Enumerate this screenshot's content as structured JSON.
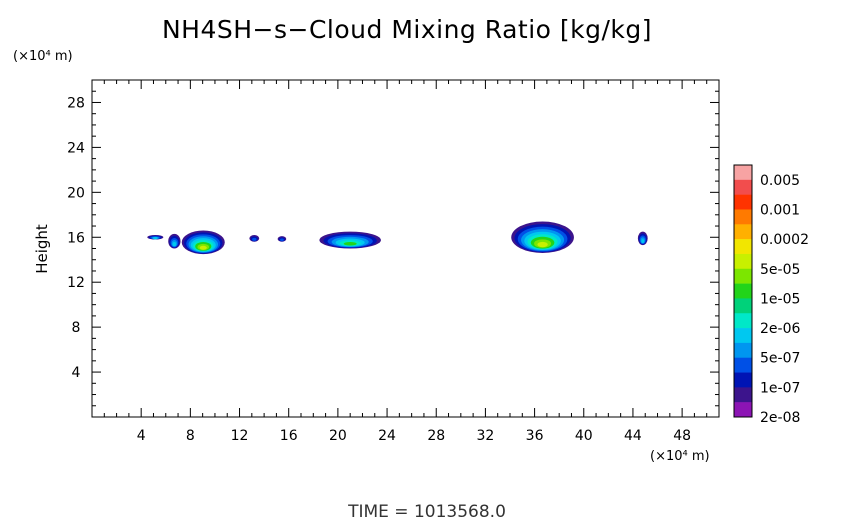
{
  "chart_data": {
    "type": "heatmap",
    "title": "NH4SH−s−Cloud Mixing Ratio [kg/kg]",
    "xlabel": "",
    "ylabel": "Height",
    "x_unit": "(×10⁴ m)",
    "y_unit": "(×10⁴ m)",
    "xlim": [
      0,
      51
    ],
    "ylim": [
      0,
      30
    ],
    "x_ticks": [
      4,
      8,
      12,
      16,
      20,
      24,
      28,
      32,
      36,
      40,
      44,
      48
    ],
    "y_ticks": [
      4,
      8,
      12,
      16,
      20,
      24,
      28
    ],
    "colorbar": {
      "labels": [
        "0.005",
        "0.001",
        "0.0002",
        "5e-05",
        "1e-05",
        "2e-06",
        "5e-07",
        "1e-07",
        "2e-08"
      ],
      "colors": [
        "#f7a3a3",
        "#f24d4d",
        "#ff3300",
        "#ff7a00",
        "#ffb000",
        "#f2e600",
        "#c8f000",
        "#7ce600",
        "#22d41a",
        "#00d27a",
        "#00e8c8",
        "#00c8f0",
        "#0096f0",
        "#0050e6",
        "#0014b4",
        "#3c148c",
        "#8c14b4"
      ]
    },
    "features": [
      {
        "x": [
          4.5,
          5.8
        ],
        "y": [
          15.8,
          16.2
        ],
        "max_level": "2e-06"
      },
      {
        "x": [
          6.2,
          7.2
        ],
        "y": [
          15.0,
          16.3
        ],
        "max_level": "2e-06"
      },
      {
        "x": [
          7.3,
          10.8
        ],
        "y": [
          14.5,
          16.6
        ],
        "max_level": "5e-05"
      },
      {
        "x": [
          12.8,
          13.6
        ],
        "y": [
          15.6,
          16.2
        ],
        "max_level": "5e-07"
      },
      {
        "x": [
          15.1,
          15.8
        ],
        "y": [
          15.6,
          16.1
        ],
        "max_level": "5e-07"
      },
      {
        "x": [
          18.5,
          23.5
        ],
        "y": [
          15.0,
          16.5
        ],
        "max_level": "1e-05"
      },
      {
        "x": [
          34.1,
          39.2
        ],
        "y": [
          14.6,
          17.4
        ],
        "max_level": "5e-05"
      },
      {
        "x": [
          44.4,
          45.2
        ],
        "y": [
          15.3,
          16.5
        ],
        "max_level": "2e-06"
      }
    ]
  },
  "footer": {
    "time_label": "TIME = 1013568.0"
  }
}
